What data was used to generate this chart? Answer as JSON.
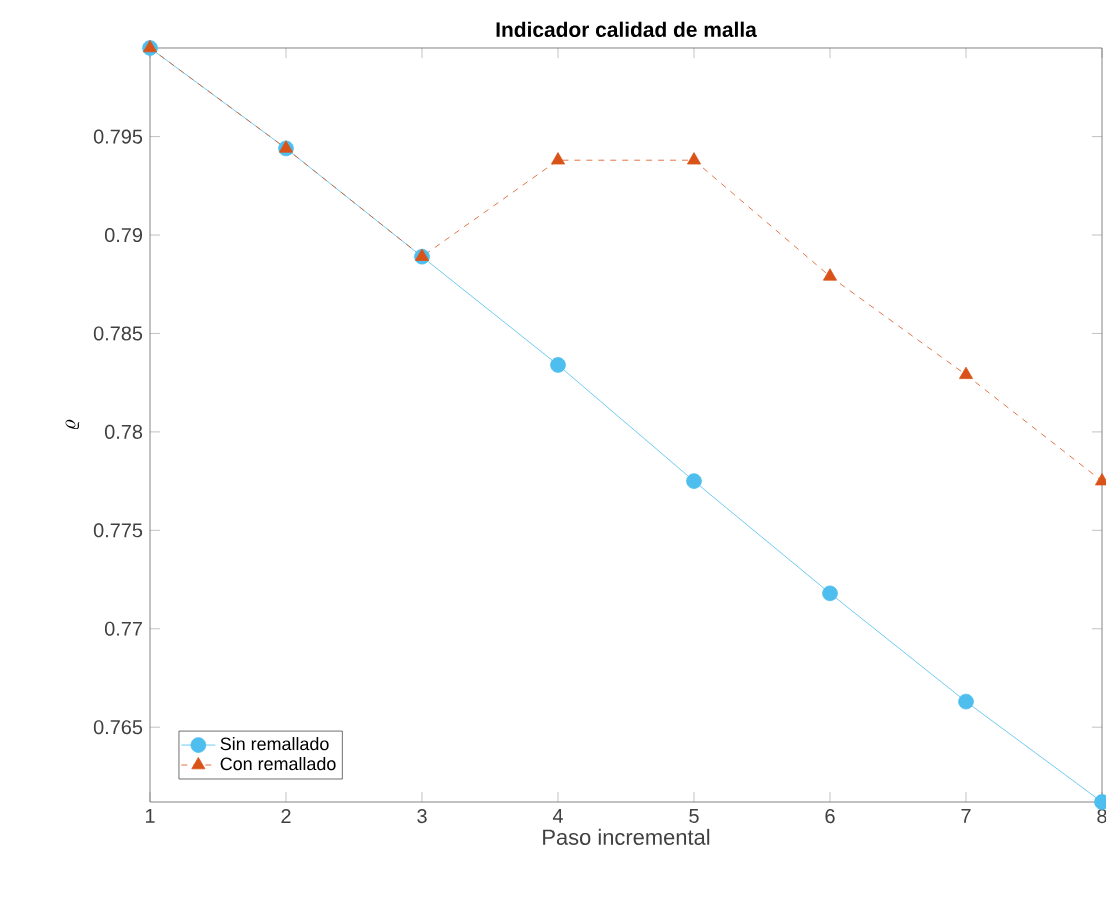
{
  "chart_data": {
    "type": "line",
    "title": "Indicador calidad de malla",
    "xlabel": "Paso incremental",
    "ylabel": "\\varrho",
    "x": [
      1,
      2,
      3,
      4,
      5,
      6,
      7,
      8
    ],
    "series": [
      {
        "name": "Sin remallado",
        "color": "#4dbeee",
        "marker": "circle",
        "line_style": "solid",
        "values": [
          0.7995,
          0.7944,
          0.7889,
          0.7834,
          0.7775,
          0.7718,
          0.7663,
          0.7612
        ]
      },
      {
        "name": "Con remallado",
        "color": "#d95319",
        "marker": "triangle",
        "line_style": "dashed",
        "values": [
          0.7995,
          0.7944,
          0.7889,
          0.7938,
          0.7938,
          0.7879,
          0.7829,
          0.7775
        ]
      }
    ],
    "xlim": [
      1,
      8
    ],
    "xticks": [
      1,
      2,
      3,
      4,
      5,
      6,
      7,
      8
    ],
    "ylim": [
      0.7612,
      0.7995
    ],
    "yticks": [
      0.765,
      0.77,
      0.775,
      0.78,
      0.785,
      0.79,
      0.795
    ],
    "grid": false,
    "legend": "bottom left"
  }
}
